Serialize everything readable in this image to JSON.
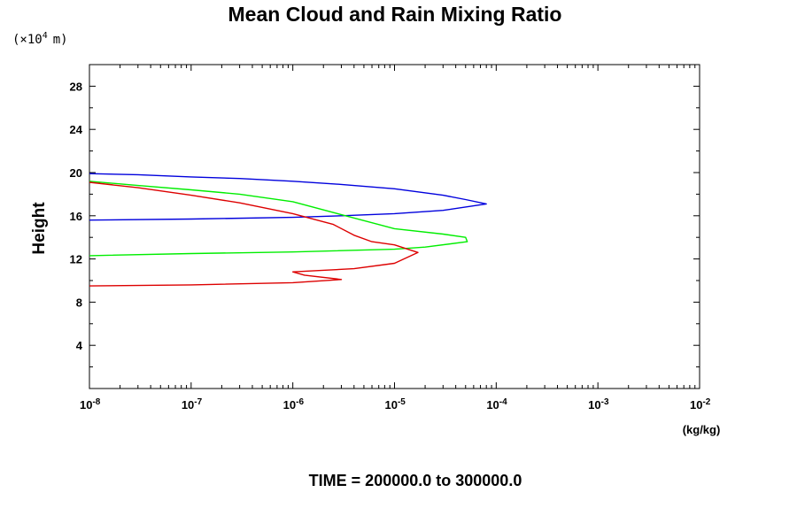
{
  "chart_data": {
    "type": "line",
    "title": "Mean Cloud and Rain Mixing Ratio",
    "ylabel": "Height",
    "y_scale_label": "(×10",
    "y_scale_exponent": "4",
    "y_scale_unit": "m)",
    "x_unit_label": "(kg/kg)",
    "footer": "TIME = 200000.0 to 300000.0",
    "xscale": "log",
    "xlim": [
      1e-08,
      0.01
    ],
    "ylim": [
      0,
      30
    ],
    "grid": false,
    "x_ticks": [
      {
        "base": "10",
        "exp": "-8",
        "value": 1e-08
      },
      {
        "base": "10",
        "exp": "-7",
        "value": 1e-07
      },
      {
        "base": "10",
        "exp": "-6",
        "value": 1e-06
      },
      {
        "base": "10",
        "exp": "-5",
        "value": 1e-05
      },
      {
        "base": "10",
        "exp": "-4",
        "value": 0.0001
      },
      {
        "base": "10",
        "exp": "-3",
        "value": 0.001
      },
      {
        "base": "10",
        "exp": "-2",
        "value": 0.01
      }
    ],
    "y_ticks": [
      "4",
      "8",
      "12",
      "16",
      "20",
      "24",
      "28"
    ],
    "series": [
      {
        "color": "#0000dd",
        "points": [
          [
            1e-08,
            19.9
          ],
          [
            3e-08,
            19.8
          ],
          [
            1e-07,
            19.6
          ],
          [
            3e-07,
            19.45
          ],
          [
            1e-06,
            19.2
          ],
          [
            3e-06,
            18.9
          ],
          [
            1e-05,
            18.5
          ],
          [
            3e-05,
            17.9
          ],
          [
            5e-05,
            17.5
          ],
          [
            8e-05,
            17.1
          ],
          [
            3e-05,
            16.5
          ],
          [
            1e-05,
            16.2
          ],
          [
            3e-06,
            16.0
          ],
          [
            1e-06,
            15.85
          ],
          [
            1e-07,
            15.7
          ],
          [
            1e-08,
            15.6
          ]
        ]
      },
      {
        "color": "#00ee00",
        "points": [
          [
            1e-08,
            19.2
          ],
          [
            3e-08,
            18.8
          ],
          [
            1e-07,
            18.4
          ],
          [
            3e-07,
            18.0
          ],
          [
            1e-06,
            17.3
          ],
          [
            3e-06,
            16.1
          ],
          [
            1e-05,
            14.8
          ],
          [
            3e-05,
            14.3
          ],
          [
            5e-05,
            14.0
          ],
          [
            5.2e-05,
            13.6
          ],
          [
            2e-05,
            13.1
          ],
          [
            1e-05,
            12.9
          ],
          [
            1e-06,
            12.65
          ],
          [
            1e-07,
            12.5
          ],
          [
            1e-08,
            12.3
          ]
        ]
      },
      {
        "color": "#dd0000",
        "points": [
          [
            1e-08,
            19.1
          ],
          [
            3e-08,
            18.6
          ],
          [
            1e-07,
            17.9
          ],
          [
            3e-07,
            17.2
          ],
          [
            1e-06,
            16.2
          ],
          [
            2.5e-06,
            15.2
          ],
          [
            4e-06,
            14.2
          ],
          [
            6e-06,
            13.6
          ],
          [
            1e-05,
            13.3
          ],
          [
            1.7e-05,
            12.6
          ],
          [
            1e-05,
            11.6
          ],
          [
            4e-06,
            11.1
          ],
          [
            1e-06,
            10.8
          ],
          [
            1.3e-06,
            10.5
          ],
          [
            3e-06,
            10.1
          ],
          [
            1e-06,
            9.8
          ],
          [
            1e-07,
            9.6
          ],
          [
            1e-08,
            9.5
          ]
        ]
      }
    ]
  }
}
